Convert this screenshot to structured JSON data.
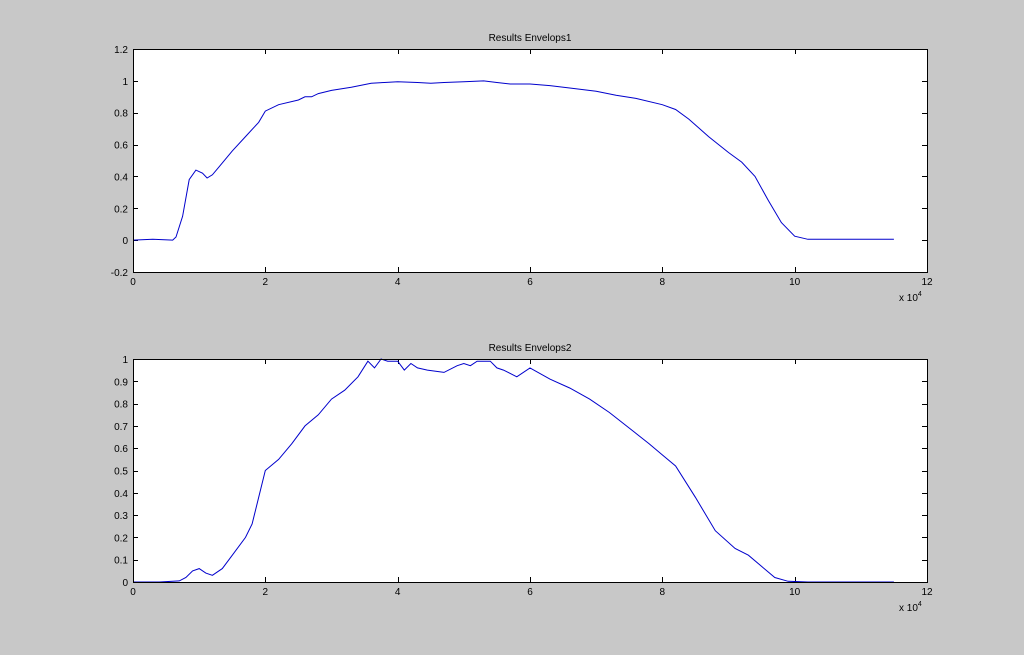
{
  "figure": {
    "background": "#c8c8c8",
    "axes_background": "#ffffff",
    "line_color": "#0000cc"
  },
  "chart_data": [
    {
      "type": "line",
      "title": "Results Envelops1",
      "xlabel": "",
      "ylabel": "",
      "xlim": [
        0,
        12
      ],
      "ylim": [
        -0.2,
        1.2
      ],
      "xticks": [
        0,
        2,
        4,
        6,
        8,
        10,
        12
      ],
      "xtick_labels": [
        "0",
        "2",
        "4",
        "6",
        "8",
        "10",
        "12"
      ],
      "yticks": [
        -0.2,
        0,
        0.2,
        0.4,
        0.6,
        0.8,
        1,
        1.2
      ],
      "ytick_labels": [
        "-0.2",
        "0",
        "0.2",
        "0.4",
        "0.6",
        "0.8",
        "1",
        "1.2"
      ],
      "x_multiplier": {
        "base": "x 10",
        "exponent": "4"
      },
      "grid": false,
      "series": [
        {
          "x": [
            0,
            0.3,
            0.6,
            0.65,
            0.75,
            0.85,
            0.95,
            1.05,
            1.12,
            1.2,
            1.3,
            1.5,
            1.7,
            1.9,
            2.0,
            2.2,
            2.5,
            2.6,
            2.7,
            2.8,
            3.0,
            3.3,
            3.6,
            3.8,
            4.0,
            4.3,
            4.5,
            4.7,
            5.0,
            5.3,
            5.5,
            5.7,
            6.0,
            6.3,
            6.6,
            7.0,
            7.3,
            7.6,
            8.0,
            8.2,
            8.4,
            8.7,
            9.0,
            9.2,
            9.4,
            9.6,
            9.8,
            10.0,
            10.2,
            10.5,
            11.0,
            11.5
          ],
          "y": [
            0,
            0.005,
            0,
            0.02,
            0.15,
            0.38,
            0.44,
            0.42,
            0.39,
            0.41,
            0.46,
            0.56,
            0.65,
            0.74,
            0.81,
            0.85,
            0.88,
            0.9,
            0.9,
            0.92,
            0.94,
            0.96,
            0.985,
            0.99,
            0.995,
            0.99,
            0.985,
            0.99,
            0.995,
            1.0,
            0.99,
            0.98,
            0.98,
            0.97,
            0.955,
            0.935,
            0.91,
            0.89,
            0.85,
            0.82,
            0.76,
            0.65,
            0.55,
            0.49,
            0.4,
            0.25,
            0.11,
            0.025,
            0.005,
            0.005,
            0.005,
            0.005
          ]
        }
      ]
    },
    {
      "type": "line",
      "title": "Results Envelops2",
      "xlabel": "",
      "ylabel": "",
      "xlim": [
        0,
        12
      ],
      "ylim": [
        0,
        1
      ],
      "xticks": [
        0,
        2,
        4,
        6,
        8,
        10,
        12
      ],
      "xtick_labels": [
        "0",
        "2",
        "4",
        "6",
        "8",
        "10",
        "12"
      ],
      "yticks": [
        0,
        0.1,
        0.2,
        0.3,
        0.4,
        0.5,
        0.6,
        0.7,
        0.8,
        0.9,
        1
      ],
      "ytick_labels": [
        "0",
        "0.1",
        "0.2",
        "0.3",
        "0.4",
        "0.5",
        "0.6",
        "0.7",
        "0.8",
        "0.9",
        "1"
      ],
      "x_multiplier": {
        "base": "x 10",
        "exponent": "4"
      },
      "grid": false,
      "series": [
        {
          "x": [
            0,
            0.4,
            0.7,
            0.8,
            0.9,
            1.0,
            1.1,
            1.2,
            1.35,
            1.5,
            1.7,
            1.8,
            1.9,
            2.0,
            2.2,
            2.4,
            2.6,
            2.8,
            3.0,
            3.2,
            3.4,
            3.55,
            3.65,
            3.75,
            3.85,
            4.0,
            4.1,
            4.2,
            4.3,
            4.45,
            4.7,
            4.9,
            5.0,
            5.1,
            5.2,
            5.4,
            5.5,
            5.6,
            5.8,
            6.0,
            6.3,
            6.6,
            6.9,
            7.2,
            7.5,
            7.8,
            8.0,
            8.2,
            8.5,
            8.8,
            9.1,
            9.3,
            9.5,
            9.7,
            9.9,
            10.2,
            10.6,
            11.0,
            11.5
          ],
          "y": [
            0,
            0,
            0.005,
            0.02,
            0.05,
            0.06,
            0.04,
            0.03,
            0.06,
            0.12,
            0.2,
            0.26,
            0.38,
            0.5,
            0.55,
            0.62,
            0.7,
            0.75,
            0.82,
            0.86,
            0.92,
            0.99,
            0.96,
            1.0,
            0.99,
            0.99,
            0.95,
            0.98,
            0.96,
            0.95,
            0.94,
            0.97,
            0.98,
            0.97,
            0.99,
            0.99,
            0.96,
            0.95,
            0.92,
            0.96,
            0.91,
            0.87,
            0.82,
            0.76,
            0.69,
            0.62,
            0.57,
            0.52,
            0.38,
            0.23,
            0.15,
            0.12,
            0.07,
            0.02,
            0.003,
            0,
            0,
            0,
            0
          ]
        }
      ]
    }
  ]
}
